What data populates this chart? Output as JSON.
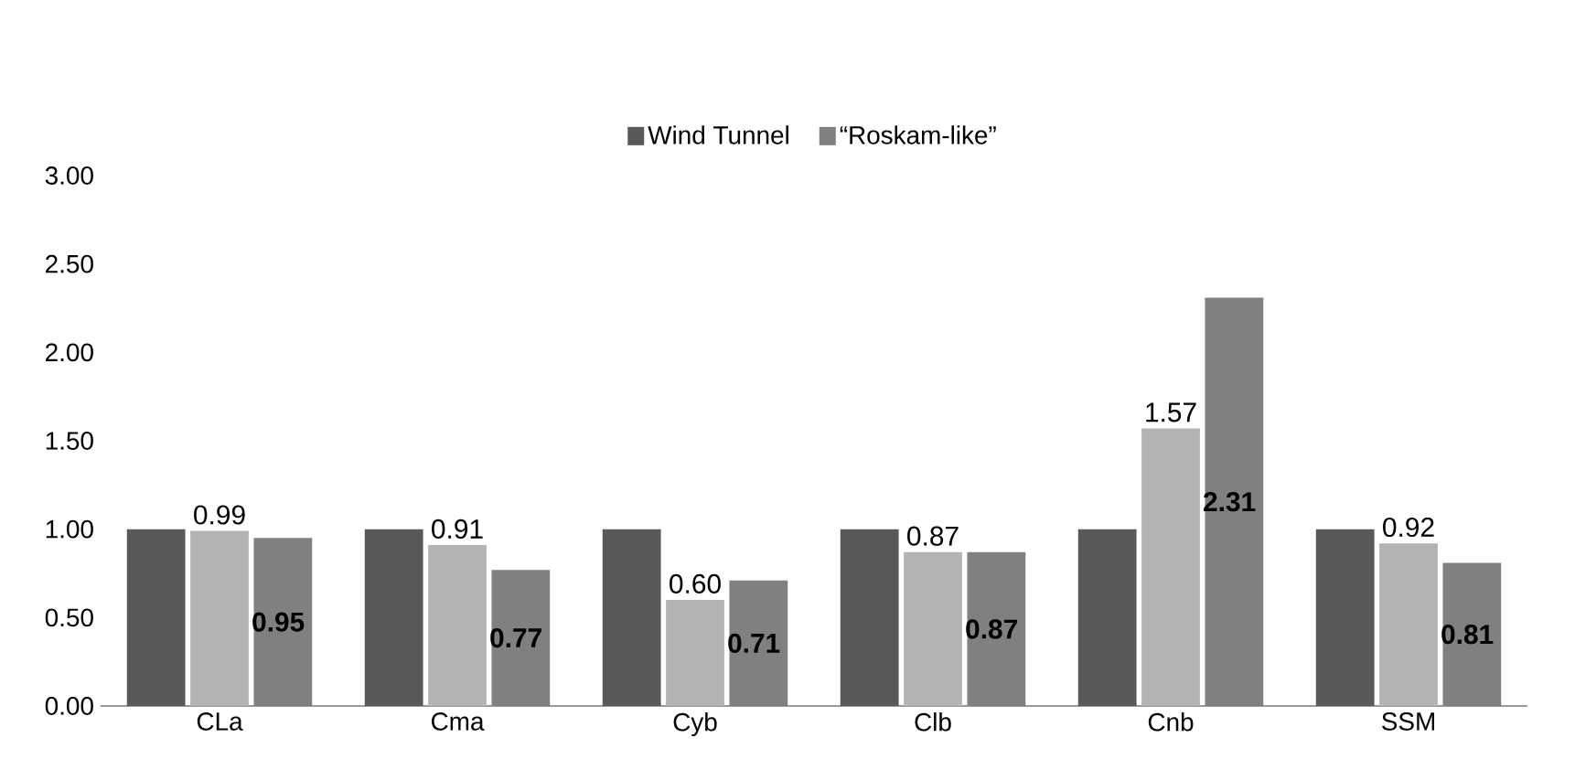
{
  "chart_data": {
    "type": "bar",
    "categories": [
      "CLa",
      "Cma",
      "Cyb",
      "Clb",
      "Cnb",
      "SSM"
    ],
    "series": [
      {
        "name": "Wind Tunnel",
        "color": "#595959",
        "values": [
          1.0,
          1.0,
          1.0,
          1.0,
          1.0,
          1.0
        ]
      },
      {
        "color": "#b3b3b3",
        "values": [
          0.99,
          0.91,
          0.6,
          0.87,
          1.57,
          0.92
        ],
        "value_labels": [
          "0.99",
          "0.91",
          "0.60",
          "0.87",
          "1.57",
          "0.92"
        ]
      },
      {
        "name": "“Roskam-like”",
        "color": "#808080",
        "values": [
          0.95,
          0.77,
          0.71,
          0.87,
          2.31,
          0.81
        ],
        "value_labels": [
          "0.95",
          "0.77",
          "0.71",
          "0.87",
          "2.31",
          "0.81"
        ]
      }
    ],
    "ylim": [
      0,
      3
    ],
    "yticks": [
      {
        "value": 0,
        "label": "0.00"
      },
      {
        "value": 0.5,
        "label": "0.50"
      },
      {
        "value": 1,
        "label": "1.00"
      },
      {
        "value": 1.5,
        "label": "1.50"
      },
      {
        "value": 2,
        "label": "2.00"
      },
      {
        "value": 2.5,
        "label": "2.50"
      },
      {
        "value": 3,
        "label": "3.00"
      }
    ],
    "grid": false,
    "legend": "top"
  }
}
